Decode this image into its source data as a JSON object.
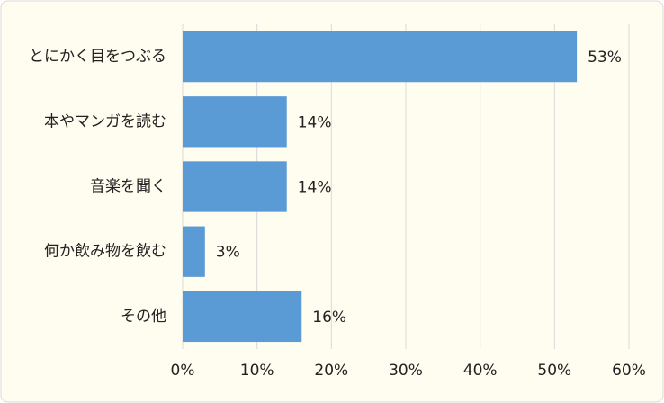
{
  "chart_data": {
    "type": "bar",
    "orientation": "horizontal",
    "categories": [
      "とにかく目をつぶる",
      "本やマンガを読む",
      "音楽を聞く",
      "何か飲み物を飲む",
      "その他"
    ],
    "values": [
      53,
      14,
      14,
      3,
      16
    ],
    "value_labels": [
      "53%",
      "14%",
      "14%",
      "3%",
      "16%"
    ],
    "color": "#5b9bd5",
    "xlim": [
      0,
      60
    ],
    "xticks": [
      {
        "value": 0,
        "label": "0%"
      },
      {
        "value": 10,
        "label": "10%"
      },
      {
        "value": 20,
        "label": "20%"
      },
      {
        "value": 30,
        "label": "30%"
      },
      {
        "value": 40,
        "label": "40%"
      },
      {
        "value": 50,
        "label": "50%"
      },
      {
        "value": 60,
        "label": "60%"
      }
    ],
    "grid": true
  }
}
